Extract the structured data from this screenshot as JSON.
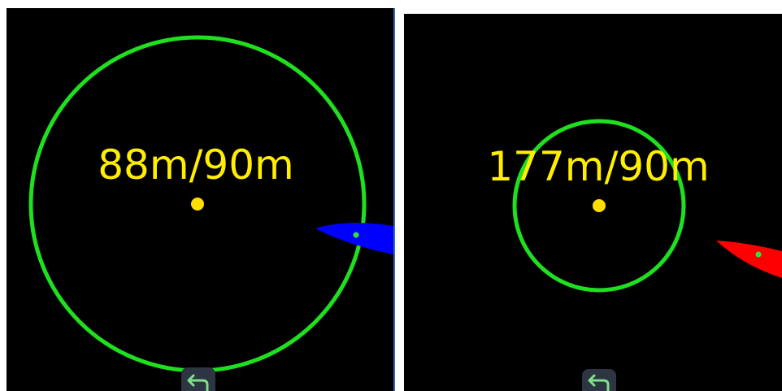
{
  "colors": {
    "background": "#000000",
    "ring": "#1fe01f",
    "center_dot": "#ffdd00",
    "readout_text": "#ffee00",
    "boat_left": "#0000ff",
    "boat_right": "#ff0000",
    "boat_marker": "#35e03a",
    "back_button_bg": "#2e3542",
    "back_arrow": "#7fe08a"
  },
  "left_panel": {
    "distance_readout": "88m/90m",
    "icons": {
      "boat": "boat-icon",
      "back": "back-arrow-icon"
    }
  },
  "right_panel": {
    "distance_readout": "177m/90m",
    "icons": {
      "boat": "boat-icon",
      "back": "back-arrow-icon"
    }
  }
}
